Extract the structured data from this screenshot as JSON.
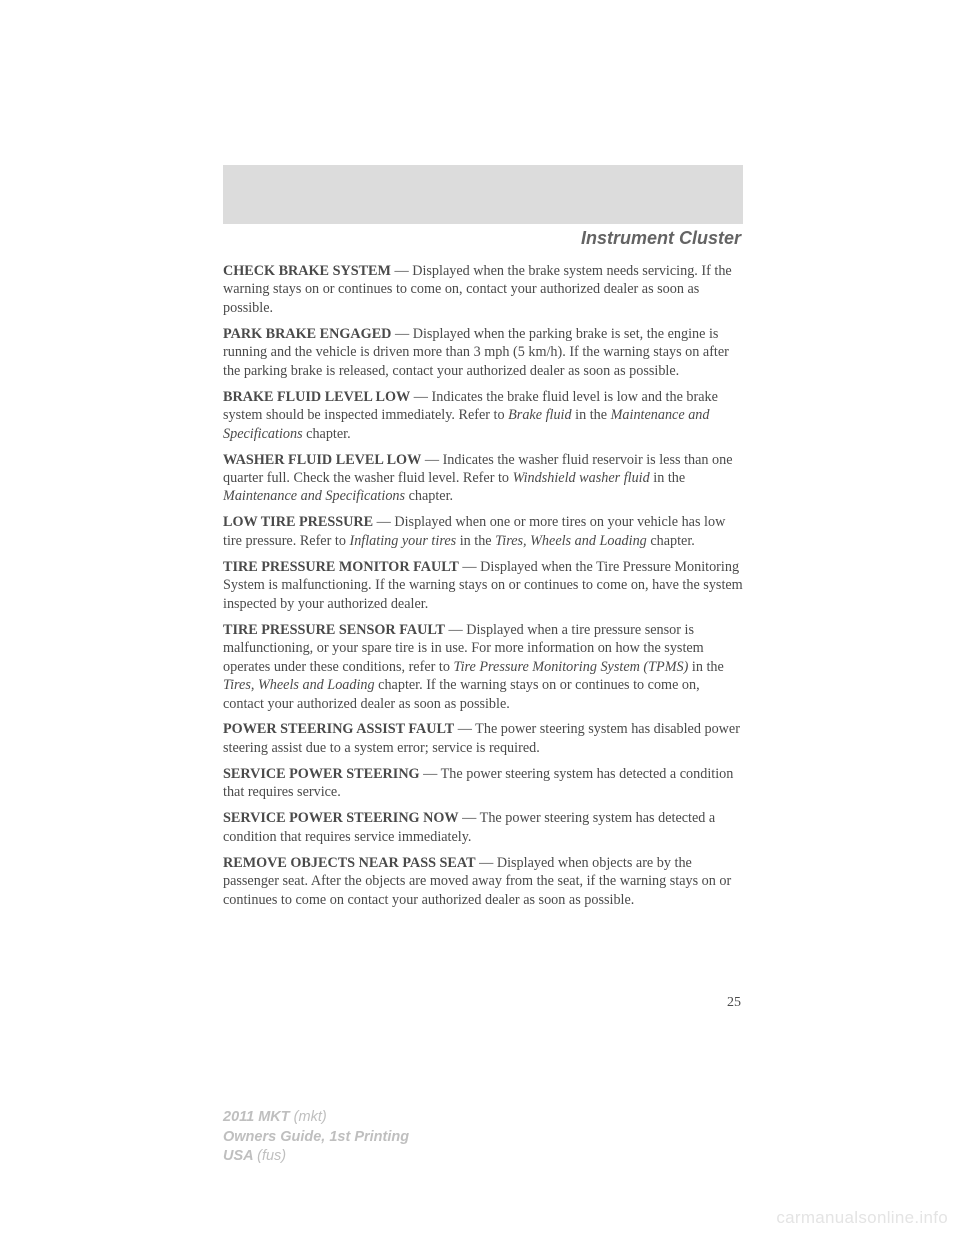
{
  "header": {
    "title": "Instrument Cluster"
  },
  "items": [
    {
      "title": "CHECK BRAKE SYSTEM",
      "body": " — Displayed when the brake system needs servicing. If the warning stays on or continues to come on, contact your authorized dealer as soon as possible."
    },
    {
      "title": "PARK BRAKE ENGAGED",
      "body": " — Displayed when the parking brake is set, the engine is running and the vehicle is driven more than 3 mph (5 km/h). If the warning stays on after the parking brake is released, contact your authorized dealer as soon as possible."
    },
    {
      "title": "BRAKE FLUID LEVEL LOW",
      "pre": " — Indicates the brake fluid level is low and the brake system should be inspected immediately. Refer to ",
      "ital1": "Brake fluid",
      "mid": " in the ",
      "ital2": "Maintenance and Specifications",
      "post": " chapter."
    },
    {
      "title": "WASHER FLUID LEVEL LOW",
      "pre": " — Indicates the washer fluid reservoir is less than one quarter full. Check the washer fluid level. Refer to ",
      "ital1": "Windshield washer fluid",
      "mid": " in the ",
      "ital2": "Maintenance and Specifications",
      "post": " chapter."
    },
    {
      "title": "LOW TIRE PRESSURE",
      "pre": " — Displayed when one or more tires on your vehicle has low tire pressure. Refer to ",
      "ital1": "Inflating your tires",
      "mid": " in the ",
      "ital2": "Tires, Wheels and Loading",
      "post": " chapter."
    },
    {
      "title": "TIRE PRESSURE MONITOR FAULT",
      "body": " — Displayed when the Tire Pressure Monitoring System is malfunctioning. If the warning stays on or continues to come on, have the system inspected by your authorized dealer."
    },
    {
      "title": "TIRE PRESSURE SENSOR FAULT",
      "pre": " — Displayed when a tire pressure sensor is malfunctioning, or your spare tire is in use. For more information on how the system operates under these conditions, refer to ",
      "ital1": "Tire Pressure Monitoring System (TPMS)",
      "mid": " in the ",
      "ital2": "Tires, Wheels and Loading",
      "post": " chapter. If the warning stays on or continues to come on, contact your authorized dealer as soon as possible."
    },
    {
      "title": "POWER STEERING ASSIST FAULT",
      "body": " — The power steering system has disabled power steering assist due to a system error; service is required."
    },
    {
      "title": "SERVICE POWER STEERING",
      "body": " — The power steering system has detected a condition that requires service."
    },
    {
      "title": "SERVICE POWER STEERING NOW",
      "body": " — The power steering system has detected a condition that requires service immediately."
    },
    {
      "title": "REMOVE OBJECTS NEAR PASS SEAT",
      "body": " — Displayed when objects are by the passenger seat. After the objects are moved away from the seat, if the warning stays on or continues to come on contact your authorized dealer as soon as possible."
    }
  ],
  "pageNumber": "25",
  "footer": {
    "line1a": "2011 MKT ",
    "line1b": "(mkt)",
    "line2": "Owners Guide, 1st Printing",
    "line3a": "USA ",
    "line3b": "(fus)"
  },
  "watermark": "carmanualsonline.info",
  "style": {
    "bg": "#ffffff",
    "grayBox": "#dcdcdc",
    "headerColor": "#646464",
    "bodyColor": "#4a4a4a",
    "footerColor": "#bfbfbf",
    "watermarkColor": "#e4e4e4",
    "bodyFontSize": 14.2,
    "headerFontSize": 18
  }
}
